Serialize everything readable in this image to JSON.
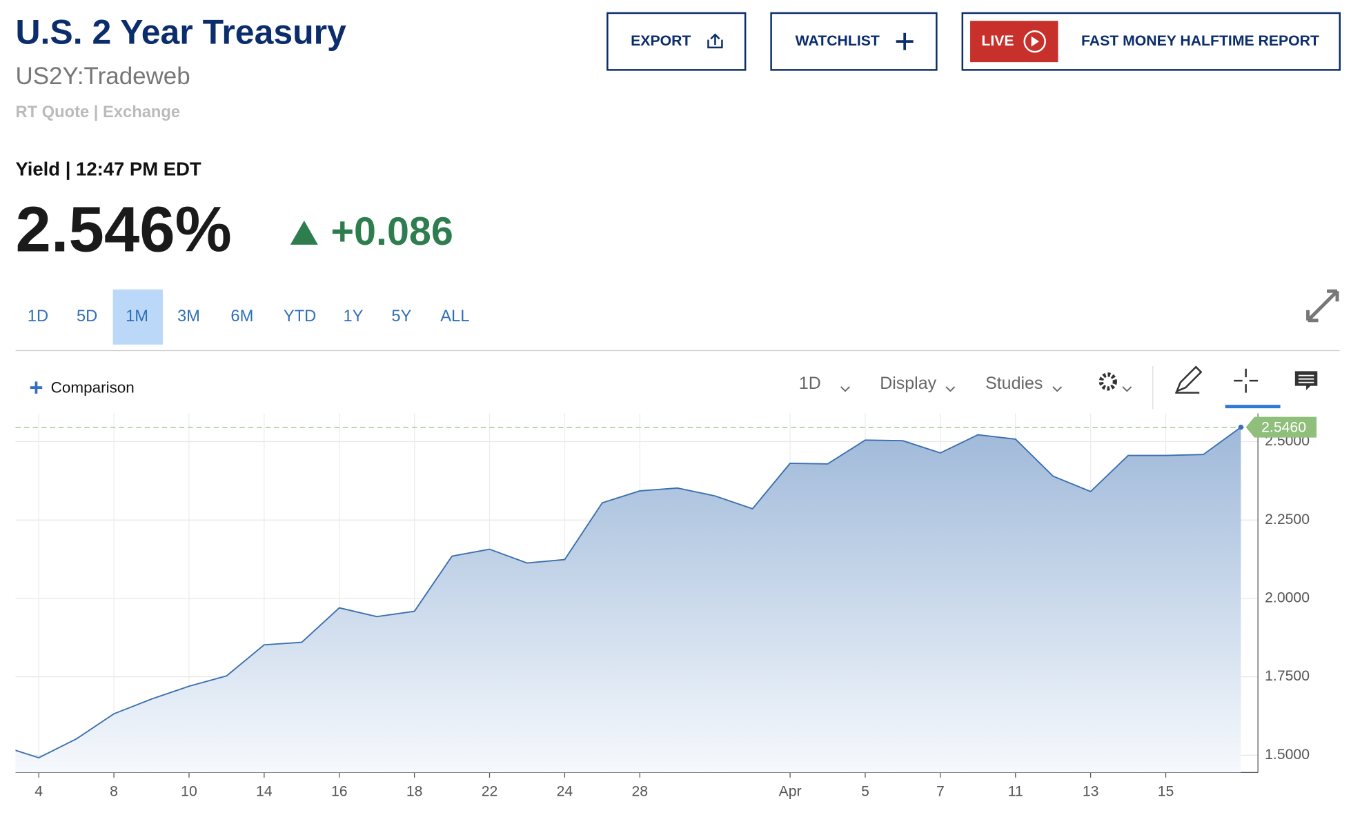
{
  "header": {
    "title": "U.S. 2 Year Treasury",
    "symbol": "US2Y:Tradeweb",
    "quote_type": "RT Quote | Exchange",
    "buttons": [
      "EXPORT",
      "WATCHLIST"
    ],
    "live_badge": "LIVE",
    "live_show": "FAST MONEY HALFTIME REPORT"
  },
  "quote": {
    "label": "Yield | 12:47 PM EDT",
    "price": "2.546%",
    "change": "+0.086"
  },
  "ranges": {
    "items": [
      "1D",
      "5D",
      "1M",
      "3M",
      "6M",
      "YTD",
      "1Y",
      "5Y",
      "ALL"
    ],
    "selected": 2
  },
  "toolbar": {
    "comparison": "Comparison",
    "interval": "1D",
    "display": "Display",
    "studies": "Studies"
  },
  "chart_data": {
    "type": "area",
    "color": "#3a6fb0",
    "categories": [
      null,
      "4",
      null,
      "8",
      null,
      "10",
      null,
      "14",
      null,
      "16",
      null,
      "18",
      null,
      "22",
      null,
      "24",
      null,
      "28",
      null,
      null,
      null,
      "Apr",
      null,
      "5",
      null,
      "7",
      null,
      "11",
      null,
      "13",
      null,
      "15",
      null,
      null
    ],
    "values": [
      1.53,
      1.492,
      1.552,
      1.632,
      1.679,
      1.72,
      1.753,
      1.852,
      1.86,
      1.97,
      1.942,
      1.959,
      2.135,
      2.157,
      2.113,
      2.124,
      2.305,
      2.343,
      2.352,
      2.327,
      2.286,
      2.431,
      2.429,
      2.505,
      2.503,
      2.464,
      2.522,
      2.508,
      2.39,
      2.341,
      2.456,
      2.456,
      2.459,
      2.546
    ],
    "ylim": [
      1.445,
      2.59
    ],
    "yticks": [
      {
        "value": 1.5,
        "label": "1.5000"
      },
      {
        "value": 1.75,
        "label": "1.7500"
      },
      {
        "value": 2.0,
        "label": "2.0000"
      },
      {
        "value": 2.25,
        "label": "2.2500"
      },
      {
        "value": 2.5,
        "label": "2.5000"
      }
    ],
    "current_value": {
      "value": 2.546,
      "label": "2.5460"
    },
    "grid": true
  }
}
